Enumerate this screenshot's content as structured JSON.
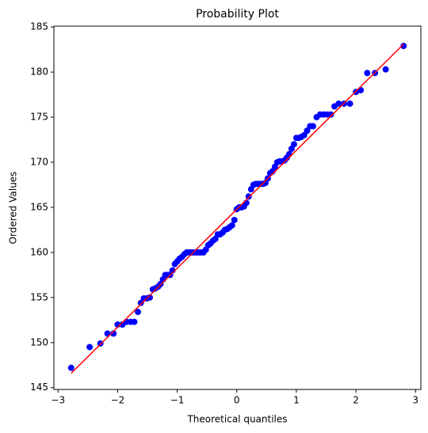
{
  "chart_data": {
    "type": "scatter",
    "title": "Probability Plot",
    "x_label": "Theoretical quantiles",
    "y_label": "Ordered Values",
    "color": "#0000ff",
    "line_color": "#ff0000",
    "x": [
      -2.78,
      -2.47,
      -2.29,
      -2.17,
      -2.07,
      -2.0,
      -1.92,
      -1.85,
      -1.78,
      -1.72,
      -1.66,
      -1.61,
      -1.56,
      -1.51,
      -1.46,
      -1.41,
      -1.37,
      -1.32,
      -1.28,
      -1.24,
      -1.2,
      -1.16,
      -1.12,
      -1.08,
      -1.04,
      -1.0,
      -0.96,
      -0.92,
      -0.88,
      -0.84,
      -0.8,
      -0.76,
      -0.72,
      -0.68,
      -0.64,
      -0.6,
      -0.56,
      -0.52,
      -0.48,
      -0.44,
      -0.4,
      -0.36,
      -0.32,
      -0.28,
      -0.24,
      -0.2,
      -0.16,
      -0.12,
      -0.08,
      -0.04,
      0.0,
      0.04,
      0.08,
      0.12,
      0.16,
      0.2,
      0.24,
      0.28,
      0.32,
      0.36,
      0.4,
      0.44,
      0.48,
      0.52,
      0.56,
      0.6,
      0.64,
      0.68,
      0.72,
      0.76,
      0.8,
      0.84,
      0.88,
      0.92,
      0.96,
      1.0,
      1.04,
      1.08,
      1.13,
      1.18,
      1.23,
      1.28,
      1.34,
      1.4,
      1.46,
      1.52,
      1.58,
      1.64,
      1.71,
      1.8,
      1.9,
      2.0,
      2.08,
      2.19,
      2.32,
      2.5,
      2.8
    ],
    "values": [
      147.2,
      149.5,
      149.9,
      151.0,
      151.0,
      152.0,
      152.0,
      152.3,
      152.3,
      152.3,
      153.4,
      154.4,
      154.9,
      154.9,
      155.0,
      155.9,
      156.0,
      156.2,
      156.5,
      157.0,
      157.5,
      157.5,
      157.5,
      158.0,
      158.7,
      159.0,
      159.3,
      159.5,
      159.8,
      160.0,
      160.0,
      160.0,
      160.0,
      160.0,
      160.0,
      160.0,
      160.0,
      160.3,
      160.8,
      161.0,
      161.3,
      161.5,
      162.0,
      162.0,
      162.2,
      162.5,
      162.6,
      162.8,
      163.0,
      163.6,
      164.8,
      165.0,
      165.0,
      165.1,
      165.5,
      166.2,
      167.0,
      167.5,
      167.6,
      167.6,
      167.6,
      167.6,
      167.7,
      168.2,
      168.8,
      169.0,
      169.5,
      170.0,
      170.1,
      170.1,
      170.2,
      170.5,
      170.9,
      171.5,
      172.0,
      172.7,
      172.7,
      172.8,
      173.0,
      173.5,
      174.0,
      174.0,
      175.0,
      175.3,
      175.3,
      175.3,
      175.3,
      176.2,
      176.5,
      176.5,
      176.5,
      177.8,
      178.0,
      179.9,
      179.9,
      180.3,
      182.9
    ],
    "fit_x": [
      -2.78,
      2.8
    ],
    "fit_values": [
      146.6,
      183.1
    ],
    "xlim": [
      -3.07,
      3.09
    ],
    "ylim": [
      144.8,
      185.1
    ],
    "xticks": [
      {
        "value": -3,
        "label": "−3"
      },
      {
        "value": -2,
        "label": "−2"
      },
      {
        "value": -1,
        "label": "−1"
      },
      0,
      1,
      2,
      3
    ],
    "yticks": [
      145,
      150,
      155,
      160,
      165,
      170,
      175,
      180,
      185
    ]
  }
}
